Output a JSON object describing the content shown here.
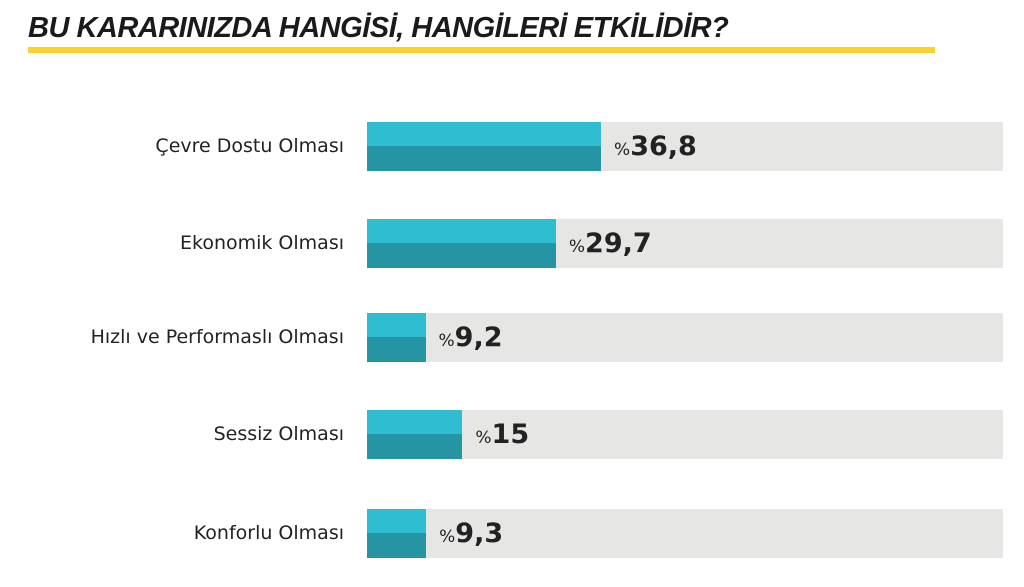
{
  "chart_data": {
    "type": "bar",
    "orientation": "horizontal",
    "title": "BU KARARINIZDA HANGİSİ, HANGİLERİ ETKİLİDİR?",
    "categories": [
      "Çevre Dostu Olması",
      "Ekonomik Olması",
      "Hızlı ve Performaslı Olması",
      "Sessiz Olması",
      "Konforlu Olması"
    ],
    "values": [
      36.8,
      29.7,
      9.2,
      15,
      9.3
    ],
    "value_labels": [
      "36,8",
      "29,7",
      "9,2",
      "15",
      "9,3"
    ],
    "value_prefix": "%",
    "xlim": [
      0,
      100
    ],
    "grid": false,
    "colors": {
      "bar_top": "#2fbed1",
      "bar_bottom": "#2594a3",
      "track": "#e6e6e5",
      "title_underline": "#fdd02b"
    }
  }
}
